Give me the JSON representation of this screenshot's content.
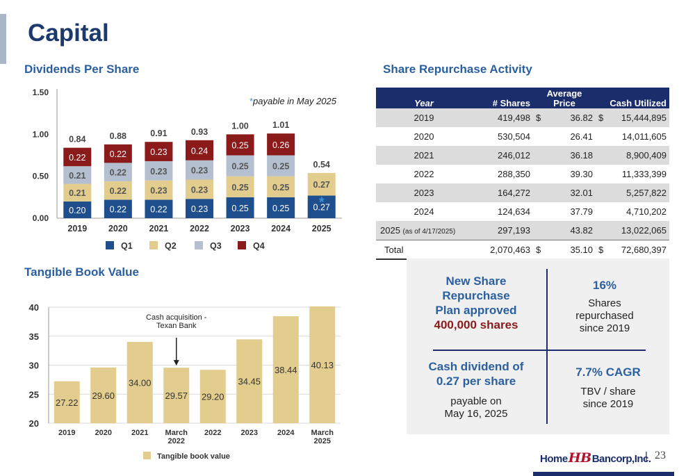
{
  "page": {
    "title": "Capital",
    "page_number": "23",
    "page_separator": "|"
  },
  "logo": {
    "part1": "Home",
    "mark": "HB",
    "part2": "Bancorp,Inc."
  },
  "dividends": {
    "section_title": "Dividends Per Share",
    "note": "payable in May 2025",
    "note_marker": "*",
    "bar_marker": "*"
  },
  "tbv": {
    "section_title": "Tangible Book Value",
    "annotation": [
      "Cash acquisition -",
      "Texan Bank"
    ]
  },
  "repurchase": {
    "section_title": "Share Repurchase Activity",
    "headers": {
      "year": "Year",
      "shares": "# Shares",
      "avg1": "Average",
      "avg2": "Price",
      "cash": "Cash Utilized"
    },
    "rows": [
      {
        "year": "2019",
        "shares": "419,498",
        "cur1": "$",
        "price": "36.82",
        "cur2": "$",
        "cash": "15,444,895"
      },
      {
        "year": "2020",
        "shares": "530,504",
        "cur1": "",
        "price": "26.41",
        "cur2": "",
        "cash": "14,011,605"
      },
      {
        "year": "2021",
        "shares": "246,012",
        "cur1": "",
        "price": "36.18",
        "cur2": "",
        "cash": "8,900,409"
      },
      {
        "year": "2022",
        "shares": "288,350",
        "cur1": "",
        "price": "39.30",
        "cur2": "",
        "cash": "11,333,399"
      },
      {
        "year": "2023",
        "shares": "164,272",
        "cur1": "",
        "price": "32.01",
        "cur2": "",
        "cash": "5,257,822"
      },
      {
        "year": "2024",
        "shares": "124,634",
        "cur1": "",
        "price": "37.79",
        "cur2": "",
        "cash": "4,710,202"
      },
      {
        "year": "2025",
        "year_note": "(as of 4/17/2025)",
        "shares": "297,193",
        "cur1": "",
        "price": "43.82",
        "cur2": "",
        "cash": "13,022,065"
      }
    ],
    "total": {
      "label": "Total",
      "shares": "2,070,463",
      "cur1": "$",
      "price": "35.10",
      "cur2": "$",
      "cash": "72,680,397"
    }
  },
  "highlights": {
    "plan": {
      "l1": "New Share",
      "l2": "Repurchase",
      "l3": "Plan approved",
      "l4": "400,000 shares"
    },
    "repurchased": {
      "pct": "16%",
      "l1": "Shares",
      "l2": "repurchased",
      "l3": "since 2019"
    },
    "dividend": {
      "l1": "Cash dividend of",
      "l2": "0.27 per share",
      "l3": "payable on",
      "l4": "May 16, 2025"
    },
    "cagr": {
      "title": "7.7% CAGR",
      "l1": "TBV / share",
      "l2": "since 2019"
    }
  },
  "chart_data": [
    {
      "type": "bar",
      "stacked": true,
      "categories": [
        "2019",
        "2020",
        "2021",
        "2022",
        "2023",
        "2024",
        "2025"
      ],
      "series": [
        {
          "name": "Q1",
          "color": "#1f4e8c",
          "values": [
            0.2,
            0.22,
            0.22,
            0.23,
            0.25,
            0.25,
            0.27
          ]
        },
        {
          "name": "Q2",
          "color": "#e3cd8e",
          "values": [
            0.21,
            0.22,
            0.23,
            0.23,
            0.25,
            0.25,
            0.27
          ]
        },
        {
          "name": "Q3",
          "color": "#b4bfd0",
          "values": [
            0.21,
            0.22,
            0.23,
            0.23,
            0.25,
            0.25,
            null
          ]
        },
        {
          "name": "Q4",
          "color": "#8b1a1a",
          "values": [
            0.22,
            0.22,
            0.23,
            0.24,
            0.25,
            0.26,
            null
          ]
        }
      ],
      "totals": [
        "0.84",
        "0.88",
        "0.91",
        "0.93",
        "1.00",
        "1.01",
        "0.54"
      ],
      "y_ticks": [
        "0.00",
        "0.50",
        "1.00",
        "1.50"
      ],
      "ylim": [
        0,
        1.5
      ],
      "grid": false,
      "legend": "bottom"
    },
    {
      "type": "bar",
      "categories": [
        [
          "2019"
        ],
        [
          "2020"
        ],
        [
          "2021"
        ],
        [
          "March",
          "2022"
        ],
        [
          "2022"
        ],
        [
          "2023"
        ],
        [
          "2024"
        ],
        [
          "March",
          "2025"
        ]
      ],
      "series": [
        {
          "name": "Tangible book value",
          "color": "#e3cd8e",
          "values": [
            27.22,
            29.6,
            34.0,
            29.57,
            29.2,
            34.45,
            38.44,
            40.13
          ]
        }
      ],
      "labels": [
        "27.22",
        "29.60",
        "34.00",
        "29.57",
        "29.20",
        "34.45",
        "38.44",
        "40.13"
      ],
      "y_ticks": [
        "20",
        "25",
        "30",
        "35",
        "40"
      ],
      "ylim": [
        20,
        40
      ],
      "grid": true,
      "legend": "bottom"
    }
  ]
}
